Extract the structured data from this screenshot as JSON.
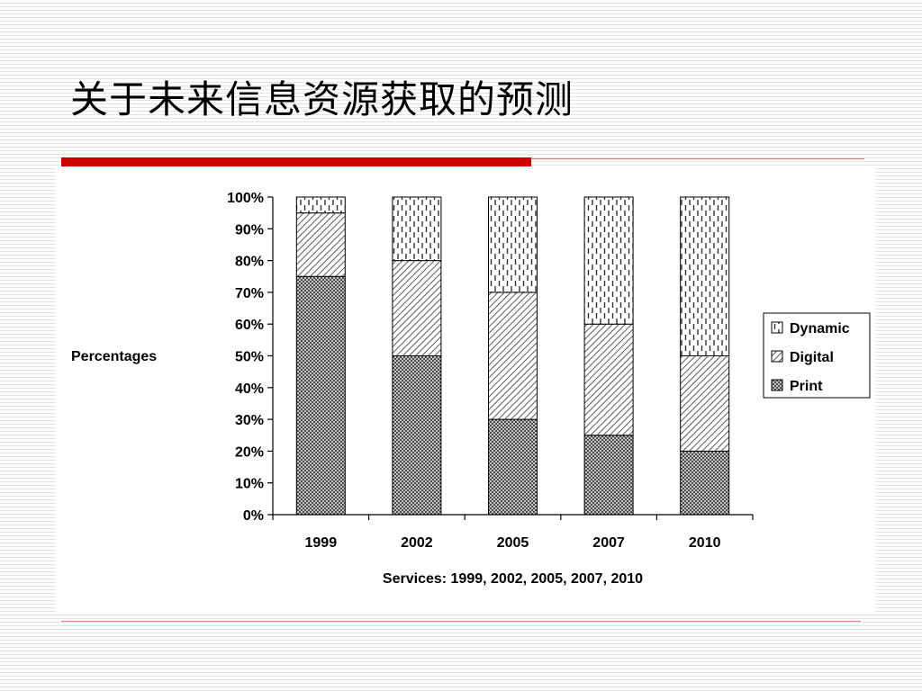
{
  "slide": {
    "title": "关于未来信息资源获取的预测",
    "accent_color": "#cc0000",
    "rule_color": "#e08080"
  },
  "chart_data": {
    "type": "bar",
    "stacked": true,
    "categories": [
      "1999",
      "2002",
      "2005",
      "2007",
      "2010"
    ],
    "series": [
      {
        "name": "Print",
        "values": [
          75,
          50,
          30,
          25,
          20
        ],
        "pattern": "crosshatch"
      },
      {
        "name": "Digital",
        "values": [
          20,
          30,
          40,
          35,
          30
        ],
        "pattern": "diagonal"
      },
      {
        "name": "Dynamic",
        "values": [
          5,
          20,
          30,
          40,
          50
        ],
        "pattern": "dashed-vertical"
      }
    ],
    "xlabel": "Services: 1999, 2002, 2005, 2007, 2010",
    "ylabel": "Percentages",
    "ylim": [
      0,
      100
    ],
    "yticks": [
      0,
      10,
      20,
      30,
      40,
      50,
      60,
      70,
      80,
      90,
      100
    ],
    "ytick_suffix": "%",
    "legend": [
      "Dynamic",
      "Digital",
      "Print"
    ],
    "legend_position": "right",
    "grid": false
  }
}
